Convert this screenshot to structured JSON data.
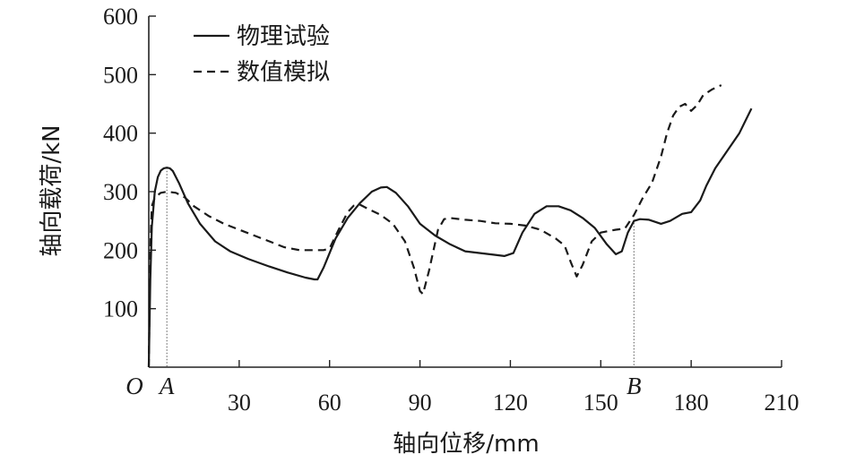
{
  "chart_data": {
    "type": "line",
    "xlabel": "轴向位移/mm",
    "ylabel": "轴向载荷/kN",
    "xlim": [
      0,
      210
    ],
    "ylim": [
      0,
      600
    ],
    "xticks": [
      30,
      60,
      90,
      120,
      150,
      180,
      210
    ],
    "yticks": [
      100,
      200,
      300,
      400,
      500,
      600
    ],
    "origin_label": "O",
    "grid": false,
    "legend_position": "top-left",
    "markers": [
      {
        "label": "A",
        "x": 6
      },
      {
        "label": "B",
        "x": 161
      }
    ],
    "series": [
      {
        "name": "物理试验",
        "style": "solid",
        "points": [
          [
            0,
            0
          ],
          [
            0.5,
            150
          ],
          [
            1,
            240
          ],
          [
            2,
            300
          ],
          [
            3,
            325
          ],
          [
            4,
            336
          ],
          [
            5,
            340
          ],
          [
            6,
            341
          ],
          [
            7,
            340
          ],
          [
            8,
            335
          ],
          [
            10,
            315
          ],
          [
            13,
            280
          ],
          [
            17,
            245
          ],
          [
            22,
            215
          ],
          [
            27,
            198
          ],
          [
            33,
            185
          ],
          [
            40,
            172
          ],
          [
            46,
            162
          ],
          [
            52,
            153
          ],
          [
            55,
            150
          ],
          [
            56,
            150
          ],
          [
            58,
            170
          ],
          [
            62,
            220
          ],
          [
            66,
            255
          ],
          [
            70,
            280
          ],
          [
            74,
            300
          ],
          [
            77,
            307
          ],
          [
            79,
            308
          ],
          [
            82,
            298
          ],
          [
            86,
            275
          ],
          [
            90,
            245
          ],
          [
            95,
            225
          ],
          [
            100,
            210
          ],
          [
            105,
            198
          ],
          [
            110,
            195
          ],
          [
            115,
            192
          ],
          [
            118,
            190
          ],
          [
            121,
            195
          ],
          [
            124,
            230
          ],
          [
            128,
            262
          ],
          [
            132,
            275
          ],
          [
            136,
            275
          ],
          [
            140,
            268
          ],
          [
            144,
            255
          ],
          [
            148,
            238
          ],
          [
            152,
            210
          ],
          [
            155,
            193
          ],
          [
            157,
            198
          ],
          [
            159,
            230
          ],
          [
            161,
            250
          ],
          [
            163,
            253
          ],
          [
            166,
            252
          ],
          [
            170,
            245
          ],
          [
            173,
            250
          ],
          [
            177,
            262
          ],
          [
            180,
            265
          ],
          [
            183,
            285
          ],
          [
            185,
            310
          ],
          [
            188,
            340
          ],
          [
            192,
            370
          ],
          [
            196,
            400
          ],
          [
            200,
            442
          ]
        ]
      },
      {
        "name": "数值模拟",
        "style": "dashed",
        "points": [
          [
            0,
            0
          ],
          [
            0.5,
            200
          ],
          [
            1,
            275
          ],
          [
            2,
            290
          ],
          [
            4,
            298
          ],
          [
            6,
            300
          ],
          [
            9,
            298
          ],
          [
            12,
            290
          ],
          [
            15,
            275
          ],
          [
            20,
            258
          ],
          [
            25,
            245
          ],
          [
            30,
            235
          ],
          [
            35,
            225
          ],
          [
            40,
            215
          ],
          [
            45,
            205
          ],
          [
            50,
            200
          ],
          [
            55,
            200
          ],
          [
            58,
            200
          ],
          [
            60,
            203
          ],
          [
            63,
            235
          ],
          [
            66,
            265
          ],
          [
            68,
            276
          ],
          [
            70,
            278
          ],
          [
            73,
            270
          ],
          [
            77,
            260
          ],
          [
            81,
            245
          ],
          [
            85,
            215
          ],
          [
            88,
            170
          ],
          [
            90,
            130
          ],
          [
            91,
            125
          ],
          [
            93,
            165
          ],
          [
            96,
            235
          ],
          [
            98,
            253
          ],
          [
            100,
            255
          ],
          [
            105,
            252
          ],
          [
            110,
            250
          ],
          [
            115,
            246
          ],
          [
            120,
            245
          ],
          [
            125,
            242
          ],
          [
            130,
            235
          ],
          [
            135,
            220
          ],
          [
            138,
            208
          ],
          [
            140,
            180
          ],
          [
            142,
            155
          ],
          [
            144,
            175
          ],
          [
            147,
            215
          ],
          [
            150,
            230
          ],
          [
            155,
            235
          ],
          [
            158,
            237
          ],
          [
            161,
            260
          ],
          [
            164,
            290
          ],
          [
            167,
            315
          ],
          [
            170,
            360
          ],
          [
            172,
            400
          ],
          [
            174,
            430
          ],
          [
            176,
            445
          ],
          [
            178,
            450
          ],
          [
            180,
            438
          ],
          [
            182,
            448
          ],
          [
            184,
            465
          ],
          [
            187,
            475
          ],
          [
            190,
            482
          ]
        ]
      }
    ]
  }
}
